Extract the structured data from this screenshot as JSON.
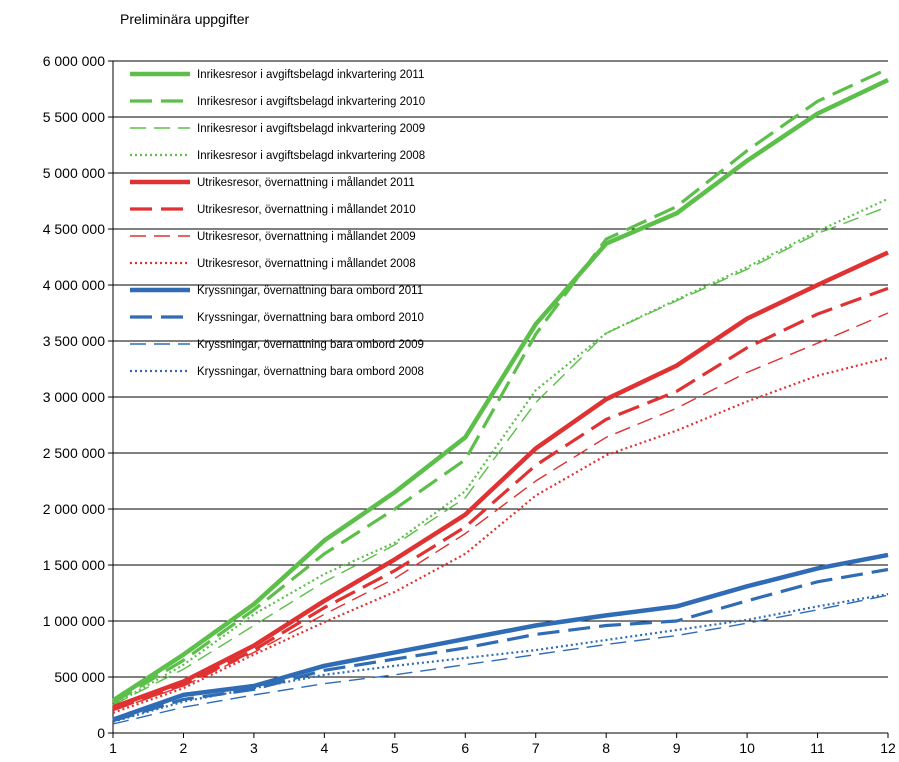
{
  "chart_data": {
    "type": "line",
    "subtitle": "Preliminära uppgifter",
    "title": "",
    "xlabel": "",
    "ylabel": "",
    "x": [
      1,
      2,
      3,
      4,
      5,
      6,
      7,
      8,
      9,
      10,
      11,
      12
    ],
    "x_tick_labels": [
      "1",
      "2",
      "3",
      "4",
      "5",
      "6",
      "7",
      "8",
      "9",
      "10",
      "11",
      "12"
    ],
    "ylim": [
      0,
      6000000
    ],
    "y_ticks": [
      0,
      500000,
      1000000,
      1500000,
      2000000,
      2500000,
      3000000,
      3500000,
      4000000,
      4500000,
      5000000,
      5500000,
      6000000
    ],
    "y_tick_labels": [
      "0",
      "500 000",
      "1 000 000",
      "1 500 000",
      "2 000 000",
      "2 500 000",
      "3 000 000",
      "3 500 000",
      "4 000 000",
      "4 500 000",
      "5 000 000",
      "5 500 000",
      "6 000 000"
    ],
    "grid": "horizontal",
    "legend_position": "top-left",
    "series": [
      {
        "name": "Inrikesresor i avgiftsbelagd inkvartering 2011",
        "color": "#5cbf4a",
        "style": "solid-thick",
        "values": [
          290000,
          700000,
          1150000,
          1720000,
          2150000,
          2640000,
          3650000,
          4370000,
          4640000,
          5110000,
          5530000,
          5830000
        ]
      },
      {
        "name": "Inrikesresor i avgiftsbelagd inkvartering 2010",
        "color": "#5cbf4a",
        "style": "dash-thick",
        "values": [
          270000,
          650000,
          1100000,
          1600000,
          2000000,
          2440000,
          3560000,
          4410000,
          4700000,
          5200000,
          5640000,
          5930000
        ]
      },
      {
        "name": "Inrikesresor i avgiftsbelagd inkvartering 2009",
        "color": "#5cbf4a",
        "style": "dash-thin",
        "values": [
          250000,
          570000,
          960000,
          1350000,
          1680000,
          2100000,
          2950000,
          3570000,
          3860000,
          4140000,
          4460000,
          4700000
        ]
      },
      {
        "name": "Inrikesresor i avgiftsbelagd inkvartering 2008",
        "color": "#5cbf4a",
        "style": "dot",
        "values": [
          250000,
          610000,
          1060000,
          1420000,
          1700000,
          2160000,
          3060000,
          3570000,
          3870000,
          4160000,
          4480000,
          4770000
        ]
      },
      {
        "name": "Utrikesresor, övernattning i mållandet 2011",
        "color": "#e03232",
        "style": "solid-thick",
        "values": [
          230000,
          460000,
          780000,
          1180000,
          1550000,
          1950000,
          2540000,
          2980000,
          3280000,
          3700000,
          4000000,
          4290000
        ]
      },
      {
        "name": "Utrikesresor, övernattning i mållandet 2010",
        "color": "#e03232",
        "style": "dash-thick",
        "values": [
          210000,
          430000,
          740000,
          1120000,
          1450000,
          1840000,
          2390000,
          2800000,
          3050000,
          3440000,
          3740000,
          3970000
        ]
      },
      {
        "name": "Utrikesresor, övernattning i mållandet 2009",
        "color": "#e03232",
        "style": "dash-thin",
        "values": [
          200000,
          420000,
          720000,
          1060000,
          1380000,
          1780000,
          2250000,
          2640000,
          2900000,
          3220000,
          3480000,
          3750000
        ]
      },
      {
        "name": "Utrikesresor, övernattning i mållandet 2008",
        "color": "#e03232",
        "style": "dot",
        "values": [
          180000,
          400000,
          700000,
          990000,
          1260000,
          1600000,
          2120000,
          2480000,
          2700000,
          2960000,
          3190000,
          3350000
        ]
      },
      {
        "name": "Kryssningar, övernattning bara ombord 2011",
        "color": "#2f6cb5",
        "style": "solid-thick",
        "values": [
          120000,
          340000,
          420000,
          600000,
          720000,
          840000,
          960000,
          1050000,
          1130000,
          1310000,
          1470000,
          1590000
        ]
      },
      {
        "name": "Kryssningar, övernattning bara ombord 2010",
        "color": "#2f6cb5",
        "style": "dash-thick",
        "values": [
          110000,
          300000,
          390000,
          560000,
          660000,
          760000,
          880000,
          960000,
          1000000,
          1180000,
          1350000,
          1460000
        ]
      },
      {
        "name": "Kryssningar, övernattning bara ombord 2009",
        "color": "#2f6cb5",
        "style": "dash-thin",
        "values": [
          80000,
          230000,
          340000,
          440000,
          520000,
          610000,
          700000,
          790000,
          870000,
          980000,
          1100000,
          1230000
        ]
      },
      {
        "name": "Kryssningar, övernattning bara ombord 2008",
        "color": "#2f6cb5",
        "style": "dot",
        "values": [
          100000,
          280000,
          400000,
          520000,
          600000,
          670000,
          740000,
          830000,
          920000,
          1010000,
          1130000,
          1240000
        ]
      }
    ]
  }
}
